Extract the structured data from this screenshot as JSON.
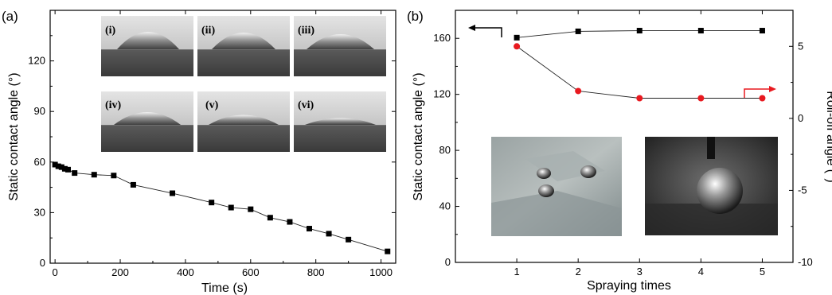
{
  "chart_data": [
    {
      "panel_label": "(a)",
      "type": "line",
      "xlabel": "Time (s)",
      "ylabel": "Static contact angle (°)",
      "xlim": [
        -15,
        1045
      ],
      "ylim": [
        0,
        150
      ],
      "xticks": [
        0,
        200,
        400,
        600,
        800,
        1000
      ],
      "yticks": [
        0,
        30,
        60,
        90,
        120
      ],
      "grid": false,
      "series": [
        {
          "marker": "square",
          "color": "#000000",
          "x": [
            0,
            10,
            20,
            30,
            40,
            60,
            120,
            180,
            240,
            360,
            480,
            540,
            600,
            660,
            720,
            780,
            840,
            900,
            1020
          ],
          "y": [
            58.5,
            57.5,
            57,
            56,
            55.5,
            53.5,
            52.5,
            52,
            46.5,
            41.5,
            36,
            33,
            32,
            27,
            24.5,
            20.5,
            17.5,
            14,
            7
          ]
        }
      ],
      "insets": [
        "(i)",
        "(ii)",
        "(iii)",
        "(iv)",
        "(v)",
        "(vi)"
      ],
      "inset_icons": [
        "droplet-photo-i",
        "droplet-photo-ii",
        "droplet-photo-iii",
        "droplet-photo-iv",
        "droplet-photo-v",
        "droplet-photo-vi"
      ]
    },
    {
      "panel_label": "(b)",
      "type": "line",
      "xlabel": "Spraying times",
      "ylabel": "Static contact angle (°)",
      "y2label": "Roll-off angle (°)",
      "xlim": [
        0,
        5.5
      ],
      "ylim": [
        0,
        180
      ],
      "y2lim": [
        -10,
        7.5
      ],
      "xticks": [
        1,
        2,
        3,
        4,
        5
      ],
      "yticks": [
        0,
        40,
        80,
        120,
        160
      ],
      "y2ticks": [
        -10,
        -5,
        0,
        5
      ],
      "grid": false,
      "series": [
        {
          "axis": "left",
          "marker": "square",
          "color": "#000000",
          "x": [
            1,
            2,
            3,
            4,
            5
          ],
          "y": [
            160.5,
            165,
            165.5,
            165.5,
            165.5
          ]
        },
        {
          "axis": "right",
          "marker": "circle",
          "color": "#e8191f",
          "x": [
            1,
            2,
            3,
            4,
            5
          ],
          "y": [
            5,
            1.9,
            1.4,
            1.4,
            1.4
          ]
        }
      ],
      "axis_arrow_colors": {
        "left": "#000000",
        "right": "#e8191f"
      },
      "insets": [
        "droplets-on-stone-photo",
        "droplet-on-needle-photo"
      ]
    }
  ]
}
